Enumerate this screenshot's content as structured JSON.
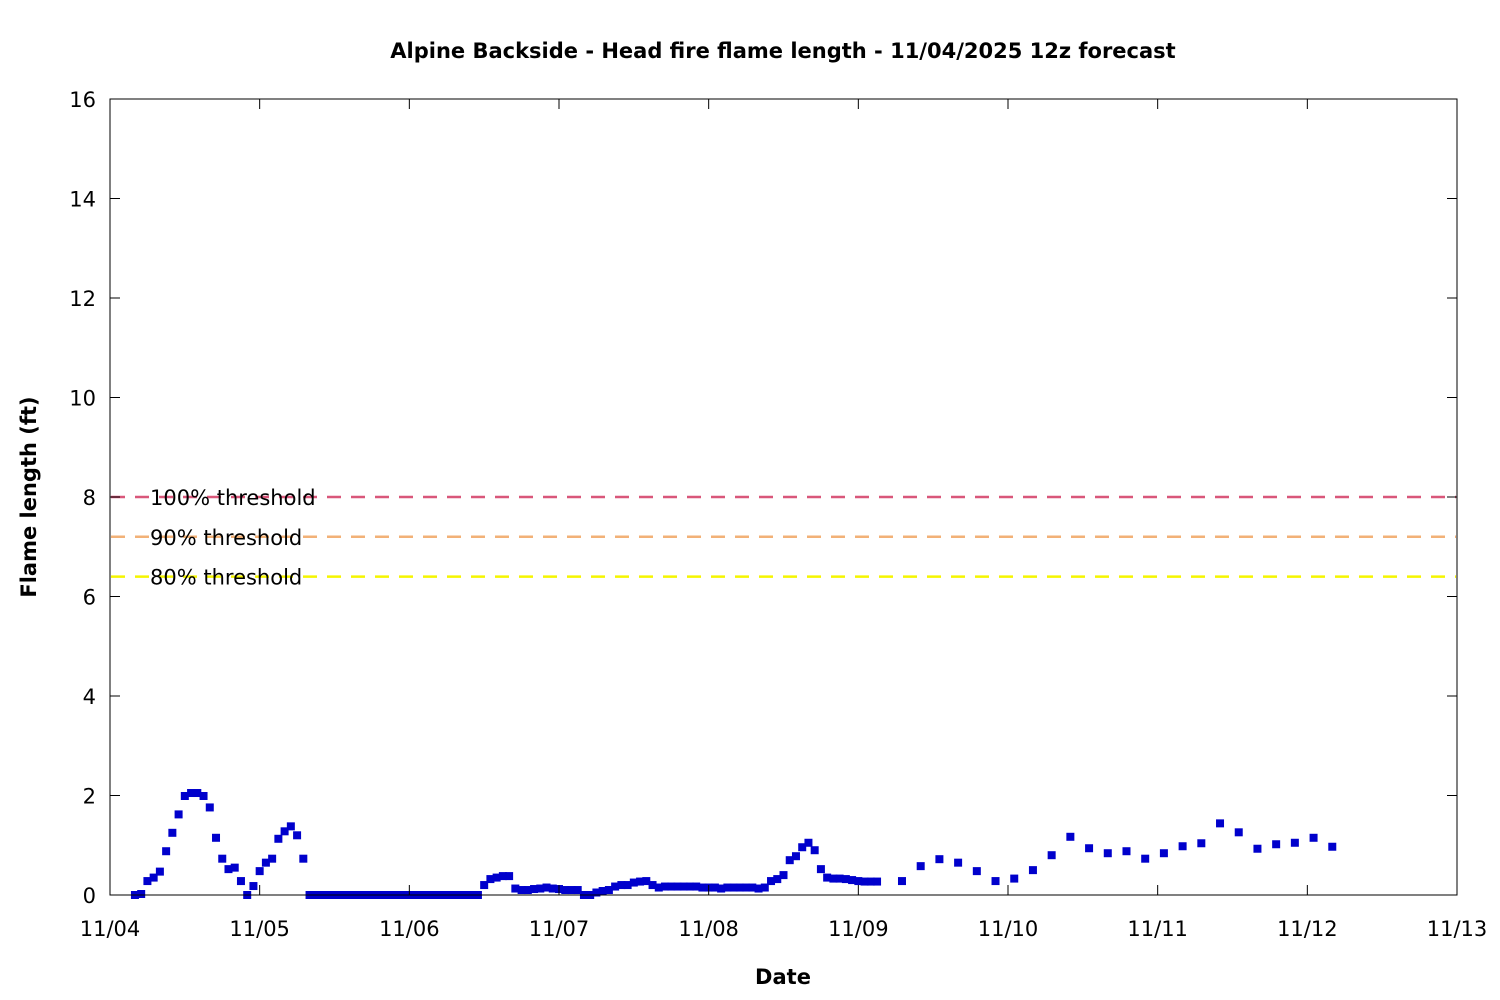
{
  "chart_data": {
    "type": "scatter",
    "title": "Alpine Backside - Head fire flame length - 11/04/2025 12z forecast",
    "xlabel": "Date",
    "ylabel": "Flame length (ft)",
    "xlim": [
      "11/04 00:00",
      "11/13 00:00"
    ],
    "ylim": [
      0,
      16
    ],
    "x_ticks": [
      "11/04",
      "11/05",
      "11/06",
      "11/07",
      "11/08",
      "11/09",
      "11/10",
      "11/11",
      "11/12",
      "11/13"
    ],
    "y_ticks": [
      "0",
      "2",
      "4",
      "6",
      "8",
      "10",
      "12",
      "14",
      "16"
    ],
    "grid": false,
    "legend_position": "left",
    "point_color": "#0000cc",
    "thresholds": [
      {
        "label": "100% threshold",
        "value": 8.0,
        "color": "#d9577a"
      },
      {
        "label": "90% threshold",
        "value": 7.2,
        "color": "#f2b177"
      },
      {
        "label": "80% threshold",
        "value": 6.4,
        "color": "#f5f500"
      }
    ],
    "series": [
      {
        "x": [
          "11/04 04:00",
          "11/04 05:00",
          "11/04 06:00",
          "11/04 07:00",
          "11/04 08:00",
          "11/04 09:00",
          "11/04 10:00",
          "11/04 11:00",
          "11/04 12:00",
          "11/04 13:00",
          "11/04 14:00",
          "11/04 15:00",
          "11/04 16:00",
          "11/04 17:00",
          "11/04 18:00",
          "11/04 19:00",
          "11/04 20:00",
          "11/04 21:00",
          "11/04 22:00",
          "11/04 23:00",
          "11/05 00:00",
          "11/05 01:00",
          "11/05 02:00",
          "11/05 03:00",
          "11/05 04:00",
          "11/05 05:00",
          "11/05 06:00",
          "11/05 07:00",
          "11/05 08:00",
          "11/05 09:00",
          "11/05 10:00",
          "11/05 11:00",
          "11/05 12:00",
          "11/05 13:00",
          "11/05 14:00",
          "11/05 15:00",
          "11/05 16:00",
          "11/05 17:00",
          "11/05 18:00",
          "11/05 19:00",
          "11/05 20:00",
          "11/05 21:00",
          "11/05 22:00",
          "11/05 23:00",
          "11/06 00:00",
          "11/06 01:00",
          "11/06 02:00",
          "11/06 03:00",
          "11/06 04:00",
          "11/06 05:00",
          "11/06 06:00",
          "11/06 07:00",
          "11/06 08:00",
          "11/06 09:00",
          "11/06 10:00",
          "11/06 11:00",
          "11/06 12:00",
          "11/06 13:00",
          "11/06 14:00",
          "11/06 15:00",
          "11/06 16:00",
          "11/06 17:00",
          "11/06 18:00",
          "11/06 19:00",
          "11/06 20:00",
          "11/06 21:00",
          "11/06 22:00",
          "11/06 23:00",
          "11/07 00:00",
          "11/07 01:00",
          "11/07 02:00",
          "11/07 03:00",
          "11/07 04:00",
          "11/07 05:00",
          "11/07 06:00",
          "11/07 07:00",
          "11/07 08:00",
          "11/07 09:00",
          "11/07 10:00",
          "11/07 11:00",
          "11/07 12:00",
          "11/07 13:00",
          "11/07 14:00",
          "11/07 15:00",
          "11/07 16:00",
          "11/07 17:00",
          "11/07 18:00",
          "11/07 19:00",
          "11/07 20:00",
          "11/07 21:00",
          "11/07 22:00",
          "11/07 23:00",
          "11/08 00:00",
          "11/08 01:00",
          "11/08 02:00",
          "11/08 03:00",
          "11/08 04:00",
          "11/08 05:00",
          "11/08 06:00",
          "11/08 07:00",
          "11/08 08:00",
          "11/08 09:00",
          "11/08 10:00",
          "11/08 11:00",
          "11/08 12:00",
          "11/08 13:00",
          "11/08 14:00",
          "11/08 15:00",
          "11/08 16:00",
          "11/08 17:00",
          "11/08 18:00",
          "11/08 19:00",
          "11/08 20:00",
          "11/08 21:00",
          "11/08 22:00",
          "11/08 23:00",
          "11/09 00:00",
          "11/09 01:00",
          "11/09 02:00",
          "11/09 03:00",
          "11/09 07:00",
          "11/09 10:00",
          "11/09 13:00",
          "11/09 16:00",
          "11/09 19:00",
          "11/09 22:00",
          "11/10 01:00",
          "11/10 04:00",
          "11/10 07:00",
          "11/10 10:00",
          "11/10 13:00",
          "11/10 16:00",
          "11/10 19:00",
          "11/10 22:00",
          "11/11 01:00",
          "11/11 04:00",
          "11/11 07:00",
          "11/11 10:00",
          "11/11 13:00",
          "11/11 16:00",
          "11/11 19:00",
          "11/11 22:00",
          "11/12 01:00",
          "11/12 04:00"
        ],
        "values": [
          0.0,
          0.02,
          0.28,
          0.35,
          0.47,
          0.88,
          1.25,
          1.62,
          1.99,
          2.05,
          2.05,
          1.99,
          1.76,
          1.15,
          0.73,
          0.52,
          0.55,
          0.28,
          0.0,
          0.18,
          0.48,
          0.65,
          0.73,
          1.13,
          1.28,
          1.38,
          1.2,
          0.73,
          0.0,
          0.0,
          0.0,
          0.0,
          0.0,
          0.0,
          0.0,
          0.0,
          0.0,
          0.0,
          0.0,
          0.0,
          0.0,
          0.0,
          0.0,
          0.0,
          0.0,
          0.0,
          0.0,
          0.0,
          0.0,
          0.0,
          0.0,
          0.0,
          0.0,
          0.0,
          0.0,
          0.0,
          0.2,
          0.32,
          0.35,
          0.38,
          0.38,
          0.13,
          0.1,
          0.1,
          0.12,
          0.13,
          0.15,
          0.13,
          0.12,
          0.1,
          0.1,
          0.1,
          0.0,
          0.0,
          0.05,
          0.08,
          0.1,
          0.17,
          0.2,
          0.2,
          0.25,
          0.27,
          0.28,
          0.2,
          0.15,
          0.17,
          0.17,
          0.17,
          0.17,
          0.17,
          0.17,
          0.15,
          0.15,
          0.15,
          0.13,
          0.15,
          0.15,
          0.15,
          0.15,
          0.15,
          0.13,
          0.15,
          0.28,
          0.32,
          0.4,
          0.7,
          0.78,
          0.96,
          1.05,
          0.9,
          0.52,
          0.35,
          0.33,
          0.33,
          0.32,
          0.3,
          0.28,
          0.27,
          0.27,
          0.27,
          0.28,
          0.58,
          0.72,
          0.65,
          0.48,
          0.28,
          0.33,
          0.5,
          0.8,
          1.17,
          0.94,
          0.84,
          0.88,
          0.73,
          0.84,
          0.98,
          1.04,
          1.44,
          1.26,
          0.93,
          1.02,
          1.05,
          1.15,
          0.97
        ]
      }
    ]
  }
}
